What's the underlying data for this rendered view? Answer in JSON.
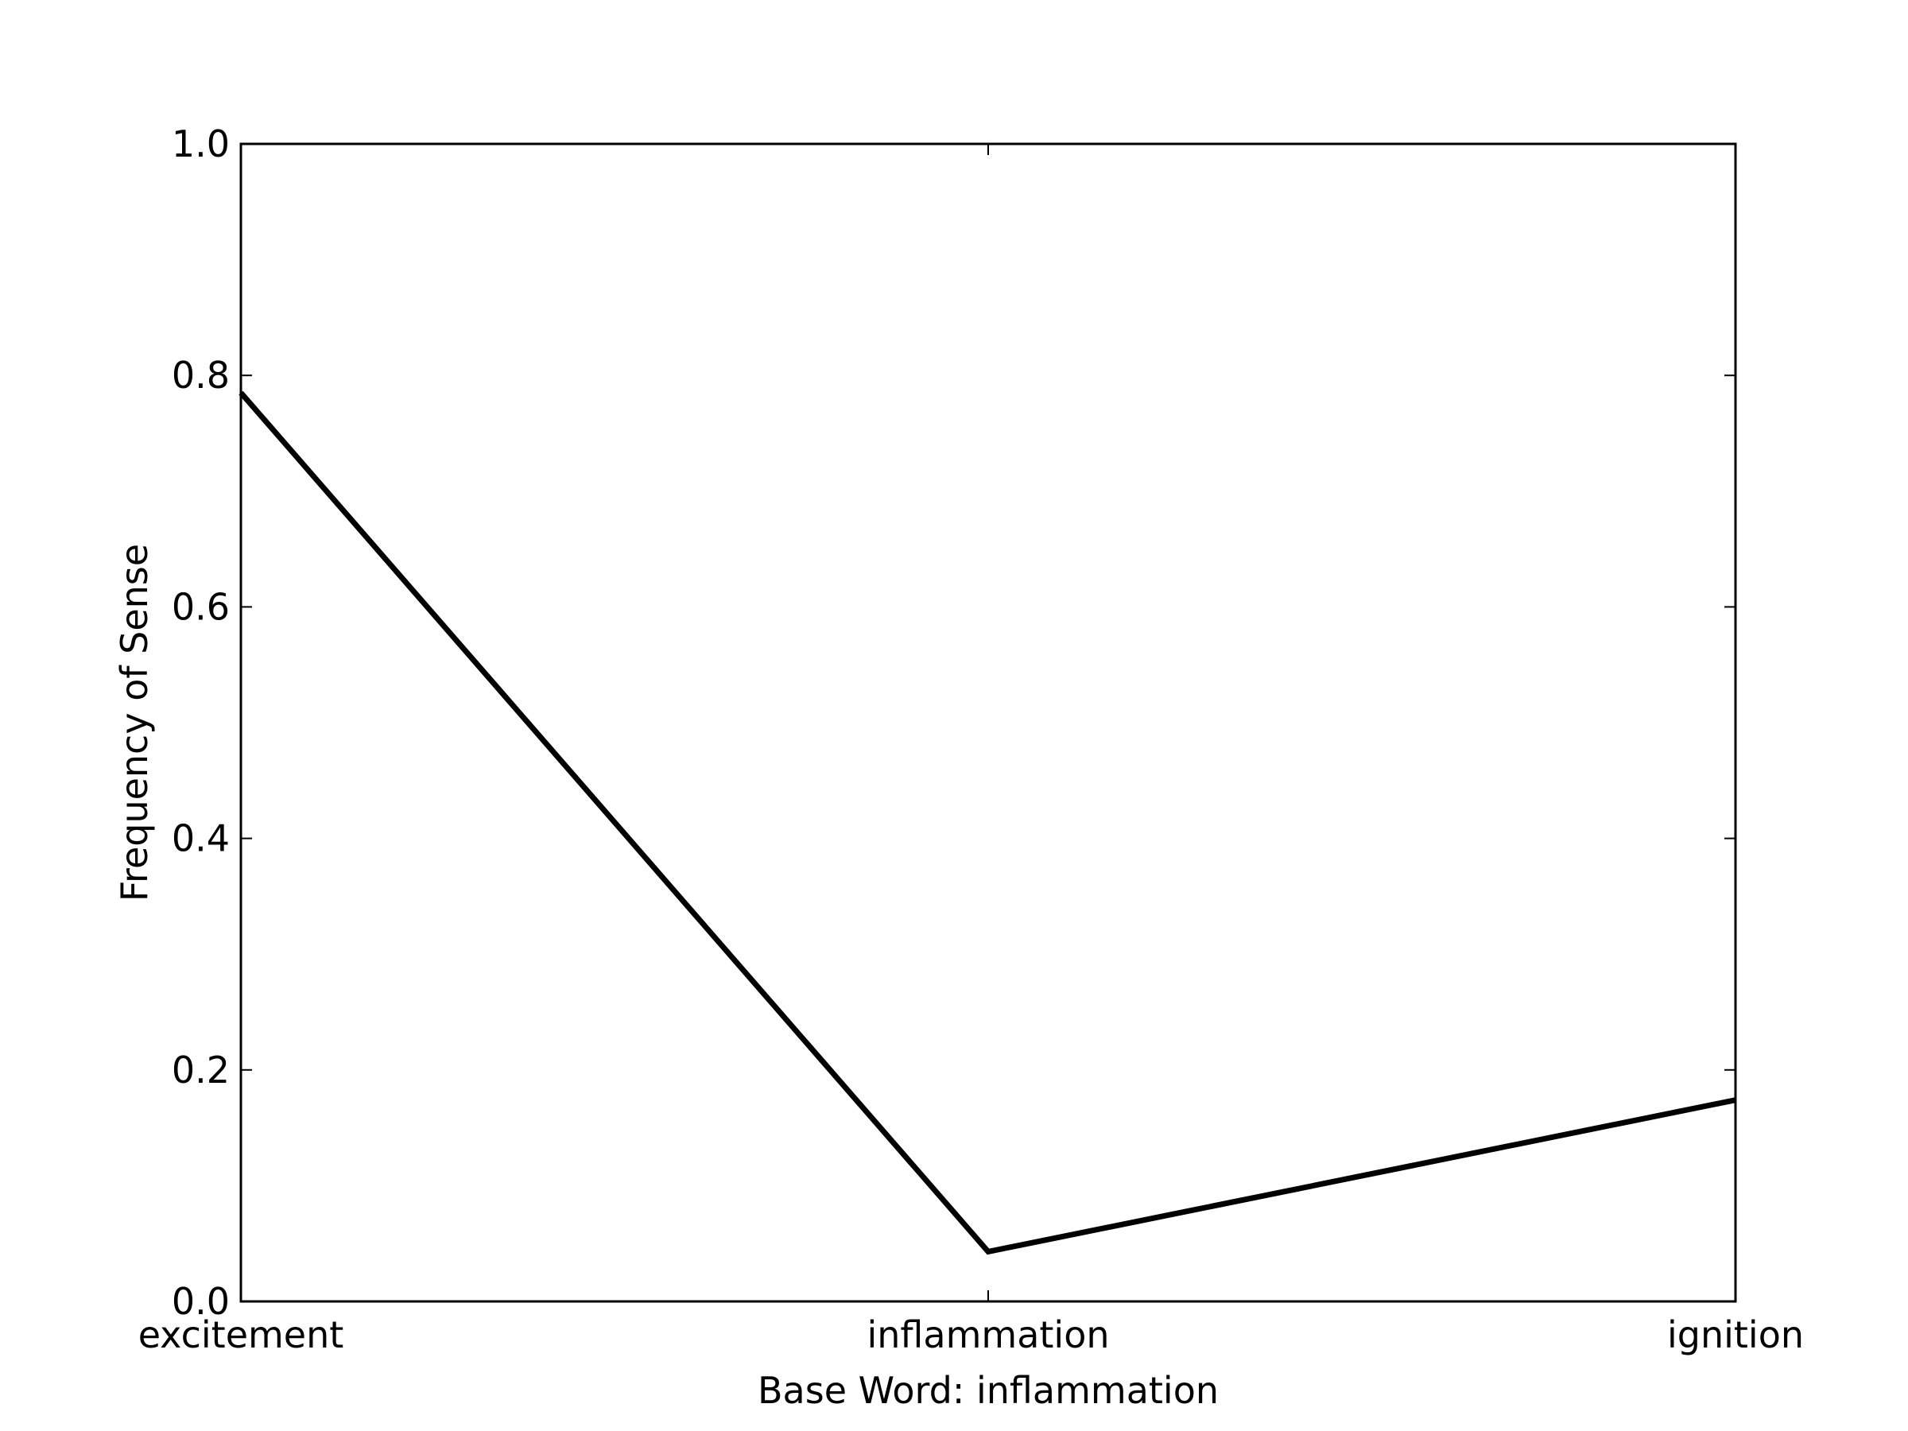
{
  "chart_data": {
    "type": "line",
    "categories": [
      "excitement",
      "inflammation",
      "ignition"
    ],
    "series": [
      {
        "values": [
          0.785,
          0.043,
          0.174
        ],
        "color": "#000000"
      }
    ],
    "xlabel": "Base Word: inflammation",
    "ylabel": "Frequency of Sense",
    "ylim": [
      0.0,
      1.0
    ],
    "yticks": [
      "0.0",
      "0.2",
      "0.4",
      "0.6",
      "0.8",
      "1.0"
    ],
    "grid": false
  }
}
